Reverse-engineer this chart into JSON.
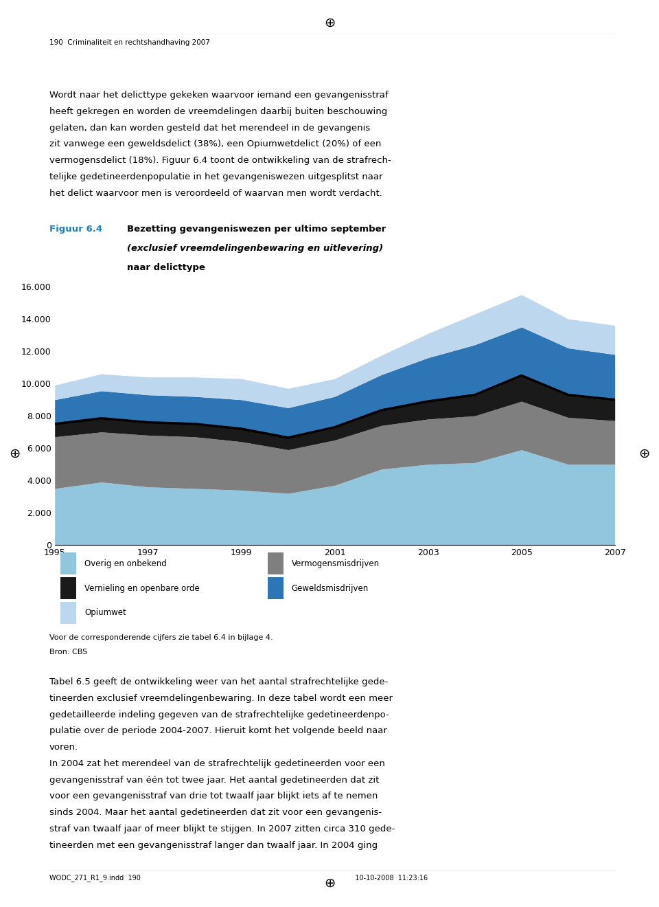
{
  "years": [
    1995,
    1996,
    1997,
    1998,
    1999,
    2000,
    2001,
    2002,
    2003,
    2004,
    2005,
    2006,
    2007
  ],
  "overig_onbekend": [
    3500,
    3900,
    3600,
    3500,
    3400,
    3200,
    3700,
    4700,
    5000,
    5100,
    5900,
    5000,
    5000
  ],
  "vermogensmisdrijven": [
    3200,
    3100,
    3200,
    3200,
    3000,
    2700,
    2800,
    2700,
    2800,
    2900,
    3000,
    2900,
    2700
  ],
  "vernieling_openbare_orde": [
    800,
    850,
    800,
    800,
    800,
    750,
    800,
    950,
    1100,
    1300,
    1600,
    1400,
    1300
  ],
  "geweldsmisdrijven": [
    1500,
    1700,
    1700,
    1700,
    1800,
    1850,
    1900,
    2200,
    2700,
    3100,
    3000,
    2900,
    2800
  ],
  "opiumwet": [
    900,
    1050,
    1100,
    1200,
    1300,
    1200,
    1100,
    1200,
    1500,
    1900,
    2000,
    1800,
    1800
  ],
  "colors": {
    "overig_onbekend": "#92C5DE",
    "vermogensmisdrijven": "#7F7F7F",
    "vernieling_openbare_orde": "#1A1A1A",
    "geweldsmisdrijven": "#2E75B6",
    "opiumwet": "#BDD7EE"
  },
  "title_label": "Figuur 6.4",
  "title_bold": "Bezetting gevangeniswezen per ultimo september",
  "title_italic": "(exclusief vreemdelingenbewaring en uitlevering)",
  "title_normal": "naar delicttype",
  "ylim": [
    0,
    16000
  ],
  "ytick_step": 2000,
  "xlabel_years": [
    1995,
    1997,
    1999,
    2001,
    2003,
    2005,
    2007
  ],
  "footer_line1": "Voor de corresponderende cijfers zie tabel 6.4 in bijlage 4.",
  "footer_line2": "Bron: CBS",
  "legend_items": [
    {
      "label": "Overig en onbekend",
      "color": "#92C5DE"
    },
    {
      "label": "Vermogensmisdrijven",
      "color": "#7F7F7F"
    },
    {
      "label": "Vernieling en openbare orde",
      "color": "#1A1A1A"
    },
    {
      "label": "Geweldsmisdrijven",
      "color": "#2E75B6"
    },
    {
      "label": "Opiumwet",
      "color": "#BDD7EE"
    }
  ],
  "page_header": "190  Criminaliteit en rechtshandhaving 2007",
  "page_footer": "WODC_271_R1_9.indd  190                                                                                                    10-10-2008  11:23:16",
  "body_text_lines": [
    "Wordt naar het delicttype gekeken waarvoor iemand een gevangenisstraf",
    "heeft gekregen en worden de vreemdelingen daarbij buiten beschouwing",
    "gelaten, dan kan worden gesteld dat het merendeel in de gevangenis",
    "zit vanwege een geweldsdelict (38%), een Opiumwetdelict (20%) of een",
    "vermogensdelict (18%). Figuur 6.4 toont de ontwikkeling van de strafrech-",
    "telijke gedetineerdenpopulatie in het gevangeniswezen uitgesplitst naar",
    "het delict waarvoor men is veroordeeld of waarvan men wordt verdacht."
  ],
  "body_text2_lines": [
    "Tabel 6.5 geeft de ontwikkeling weer van het aantal strafrechtelijke gede-",
    "tineerden exclusief vreemdelingenbewaring. In deze tabel wordt een meer",
    "gedetailleerde indeling gegeven van de strafrechtelijke gedetineerdenpo-",
    "pulatie over de periode 2004-2007. Hieruit komt het volgende beeld naar",
    "voren.",
    "In 2004 zat het merendeel van de strafrechtelijk gedetineerden voor een",
    "gevangenisstraf van één tot twee jaar. Het aantal gedetineerden dat zit",
    "voor een gevangenisstraf van drie tot twaalf jaar blijkt iets af te nemen",
    "sinds 2004. Maar het aantal gedetineerden dat zit voor een gevangenis-",
    "straf van twaalf jaar of meer blijkt te stijgen. In 2007 zitten circa 310 gede-",
    "tineerden met een gevangenisstraf langer dan twaalf jaar. In 2004 ging"
  ]
}
